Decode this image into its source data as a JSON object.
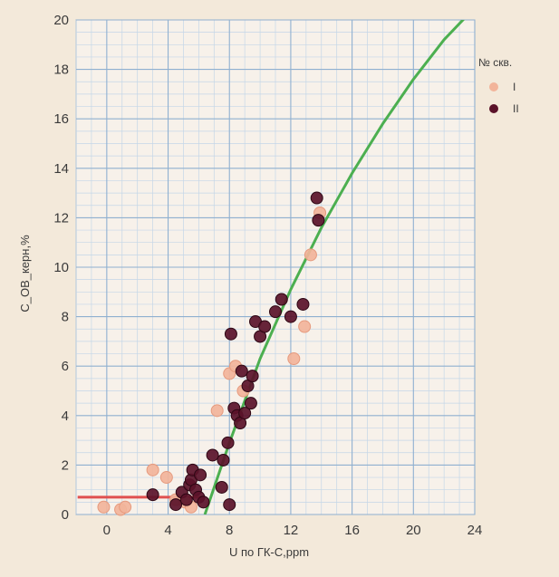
{
  "chart_data": {
    "type": "scatter",
    "xlabel": "U по ГК-С,ppm",
    "ylabel": "С_ОВ_керн,%",
    "xlim": [
      -2,
      24
    ],
    "ylim": [
      0,
      20
    ],
    "x_ticks": [
      0,
      4,
      8,
      12,
      16,
      20,
      24
    ],
    "y_ticks": [
      0,
      2,
      4,
      6,
      8,
      10,
      12,
      14,
      16,
      18,
      20
    ],
    "grid": true,
    "legend": {
      "title": "№ скв.",
      "position": "top-right"
    },
    "series": [
      {
        "name": "I",
        "color": "#f2b49a",
        "points": [
          [
            -0.2,
            0.3
          ],
          [
            0.9,
            0.2
          ],
          [
            1.2,
            0.3
          ],
          [
            3.0,
            1.8
          ],
          [
            3.9,
            1.5
          ],
          [
            4.5,
            0.6
          ],
          [
            5.1,
            0.5
          ],
          [
            5.5,
            0.3
          ],
          [
            7.2,
            4.2
          ],
          [
            8.0,
            5.7
          ],
          [
            8.4,
            6.0
          ],
          [
            8.9,
            5.0
          ],
          [
            12.2,
            6.3
          ],
          [
            12.9,
            7.6
          ],
          [
            13.3,
            10.5
          ],
          [
            13.9,
            12.2
          ]
        ]
      },
      {
        "name": "II",
        "color": "#5a1229",
        "points": [
          [
            3.0,
            0.8
          ],
          [
            4.5,
            0.4
          ],
          [
            4.9,
            0.9
          ],
          [
            5.2,
            0.6
          ],
          [
            5.4,
            1.2
          ],
          [
            5.5,
            1.4
          ],
          [
            5.6,
            1.8
          ],
          [
            5.8,
            1.0
          ],
          [
            6.0,
            0.7
          ],
          [
            6.1,
            1.6
          ],
          [
            6.3,
            0.5
          ],
          [
            6.9,
            2.4
          ],
          [
            7.5,
            1.1
          ],
          [
            7.6,
            2.2
          ],
          [
            7.9,
            2.9
          ],
          [
            8.0,
            0.4
          ],
          [
            8.1,
            7.3
          ],
          [
            8.3,
            4.3
          ],
          [
            8.5,
            4.0
          ],
          [
            8.7,
            3.7
          ],
          [
            8.8,
            5.8
          ],
          [
            9.0,
            4.1
          ],
          [
            9.2,
            5.2
          ],
          [
            9.4,
            4.5
          ],
          [
            9.5,
            5.6
          ],
          [
            9.7,
            7.8
          ],
          [
            10.0,
            7.2
          ],
          [
            10.3,
            7.6
          ],
          [
            11.0,
            8.2
          ],
          [
            11.4,
            8.7
          ],
          [
            12.0,
            8.0
          ],
          [
            12.8,
            8.5
          ],
          [
            13.7,
            12.8
          ],
          [
            13.8,
            11.9
          ]
        ]
      }
    ],
    "trend_line": {
      "color": "#4caf50",
      "points": [
        [
          6.4,
          0
        ],
        [
          8,
          2.9
        ],
        [
          10,
          6.3
        ],
        [
          12,
          9.1
        ],
        [
          14,
          11.6
        ],
        [
          16,
          13.8
        ],
        [
          18,
          15.8
        ],
        [
          20,
          17.6
        ],
        [
          22,
          19.2
        ],
        [
          24,
          20.5
        ]
      ]
    },
    "baseline_segment": {
      "color": "#e05050",
      "points": [
        [
          -1.9,
          0.7
        ],
        [
          6.3,
          0.7
        ]
      ]
    }
  }
}
